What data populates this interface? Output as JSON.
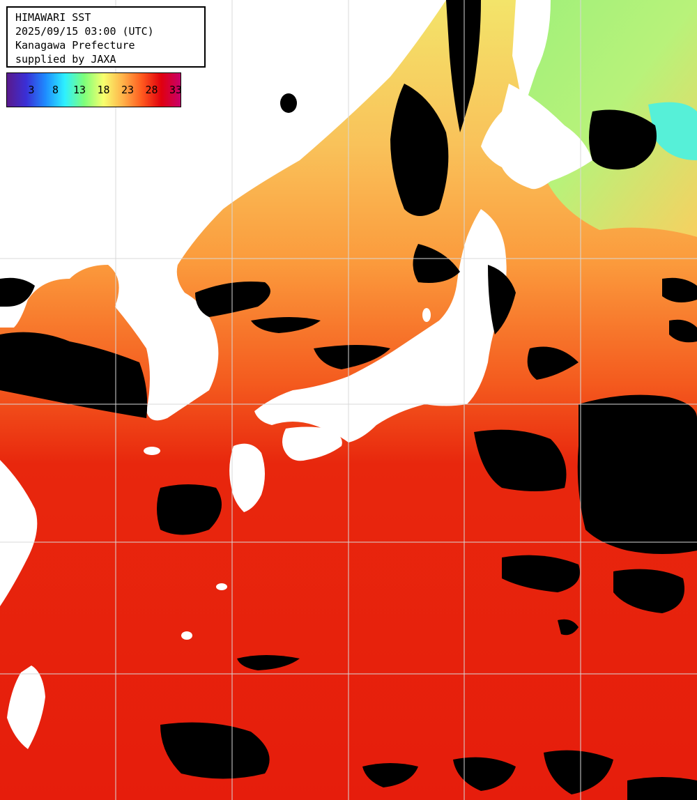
{
  "title": {
    "product": "HIMAWARI SST",
    "datetime": "2025/09/15 03:00 (UTC)",
    "region": "Kanagawa Prefecture",
    "credit": "supplied by JAXA"
  },
  "colorbar": {
    "ticks": [
      "3",
      "8",
      "13",
      "18",
      "23",
      "28",
      "33"
    ],
    "stops": [
      "#5a1a8c",
      "#3a2fd6",
      "#1e8cff",
      "#2ef0ff",
      "#7dff7a",
      "#f7ff6e",
      "#ffb34a",
      "#ff5a1e",
      "#e0000e",
      "#c8006a"
    ]
  },
  "map": {
    "colors": {
      "cloud": "#000000",
      "land": "#ffffff",
      "grid": "#d8d8d8",
      "sea_warm": "#e8200c",
      "sea_mid": "#ff7a2a",
      "sea_cool": "#f2d56a",
      "sea_cold": "#8be87a"
    }
  }
}
